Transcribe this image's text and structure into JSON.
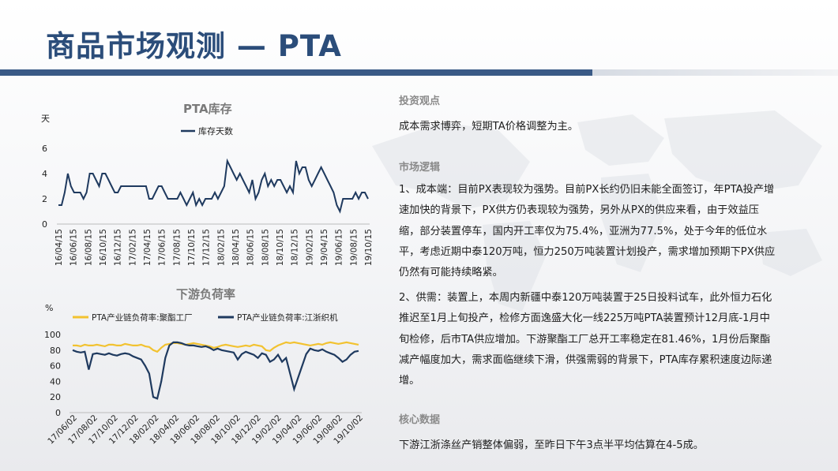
{
  "header": {
    "title": "商品市场观测 — PTA"
  },
  "chart1": {
    "title": "PTA库存",
    "unit_label": "天",
    "legend": "库存天数",
    "line_color": "#1f3a5f"
  },
  "chart2": {
    "title": "下游负荷率",
    "unit_label": "%",
    "legend_a": "PTA产业链负荷率:聚酯工厂",
    "legend_b": "PTA产业链负荷率:江浙织机",
    "color_a": "#f2c230",
    "color_b": "#1f3a5f"
  },
  "chart_data": [
    {
      "type": "line",
      "title": "PTA库存",
      "ylabel": "天",
      "ylim": [
        0,
        6
      ],
      "yticks": [
        "0",
        "2",
        "4",
        "6"
      ],
      "x_ticks": [
        "16/04/15",
        "16/06/15",
        "16/08/15",
        "16/10/15",
        "16/12/15",
        "17/02/15",
        "17/04/15",
        "17/06/15",
        "17/08/15",
        "17/10/15",
        "17/12/15",
        "18/02/15",
        "18/04/15",
        "18/06/15",
        "18/08/15",
        "18/10/15",
        "18/12/15",
        "19/02/15",
        "19/04/15",
        "19/06/15",
        "19/08/15",
        "19/10/15"
      ],
      "x_range": [
        "16/04/15",
        "19/10/15"
      ],
      "series": [
        {
          "name": "库存天数",
          "values": [
            1.5,
            1.5,
            2.5,
            4,
            3,
            2.5,
            2.5,
            2.5,
            2,
            2.5,
            4,
            4,
            3.5,
            3,
            4,
            4,
            3.5,
            3,
            2.5,
            2.5,
            3,
            3,
            3,
            3,
            3,
            3,
            3,
            3,
            3,
            2,
            2,
            2.5,
            3,
            3,
            2.5,
            2,
            2,
            2,
            2,
            2.5,
            2,
            1.5,
            2,
            2.5,
            1.5,
            2,
            1.5,
            2,
            2,
            2,
            2.5,
            2,
            2.5,
            3,
            5,
            4.5,
            4,
            3.5,
            4,
            3.5,
            3,
            2.5,
            3.5,
            2,
            2.5,
            3.5,
            4,
            3,
            3.5,
            3,
            3.5,
            3.5,
            3,
            2.5,
            3,
            2.5,
            5,
            4,
            4.5,
            4.5,
            3.5,
            3,
            3.5,
            4,
            4.5,
            4,
            3.5,
            3,
            2.5,
            1.5,
            1,
            2,
            2,
            2,
            2,
            2.5,
            2,
            2.5,
            2.5,
            2
          ]
        }
      ]
    },
    {
      "type": "line",
      "title": "下游负荷率",
      "ylabel": "%",
      "ylim": [
        0,
        100
      ],
      "yticks": [
        "0",
        "20",
        "40",
        "60",
        "80",
        "100"
      ],
      "x_ticks": [
        "17/06/02",
        "17/08/02",
        "17/10/02",
        "17/12/02",
        "18/02/02",
        "18/04/02",
        "18/06/02",
        "18/08/02",
        "18/10/02",
        "18/12/02",
        "19/02/02",
        "19/04/02",
        "19/06/02",
        "19/08/02",
        "19/10/02"
      ],
      "x_range": [
        "17/06/02",
        "19/10/02"
      ],
      "series": [
        {
          "name": "PTA产业链负荷率:聚酯工厂",
          "values": [
            86,
            86,
            85,
            87,
            86,
            86,
            87,
            86,
            85,
            87,
            87,
            86,
            86,
            88,
            87,
            86,
            86,
            87,
            85,
            84,
            80,
            78,
            83,
            87,
            88,
            89,
            89,
            88,
            87,
            88,
            89,
            88,
            87,
            86,
            85,
            83,
            84,
            86,
            87,
            86,
            85,
            84,
            85,
            86,
            85,
            87,
            86,
            85,
            80,
            79,
            83,
            86,
            88,
            90,
            89,
            90,
            89,
            88,
            87,
            86,
            87,
            88,
            87,
            89,
            90,
            89,
            88,
            89,
            90,
            89,
            88,
            87
          ]
        },
        {
          "name": "PTA产业链负荷率:江浙织机",
          "values": [
            80,
            78,
            77,
            78,
            55,
            75,
            76,
            75,
            74,
            76,
            74,
            73,
            75,
            76,
            75,
            72,
            70,
            68,
            60,
            50,
            20,
            18,
            40,
            70,
            86,
            90,
            90,
            89,
            87,
            86,
            86,
            85,
            84,
            85,
            83,
            80,
            82,
            80,
            79,
            78,
            77,
            68,
            75,
            78,
            76,
            74,
            70,
            76,
            74,
            65,
            68,
            74,
            65,
            70,
            50,
            30,
            45,
            60,
            75,
            82,
            80,
            79,
            81,
            78,
            76,
            74,
            70,
            65,
            68,
            74,
            78,
            79
          ]
        }
      ]
    }
  ],
  "right_panel": {
    "section1_heading": "投资观点",
    "section1_text": "成本需求博弈，短期TA价格调整为主。",
    "section2_heading": "市场逻辑",
    "section2_p1": "1、成本端：目前PX表现较为强势。目前PX长约仍旧未能全面签订，年PTA投产增速加快的背景下，PX供方仍表现较为强势，另外从PX的供应来看，由于效益压缩，部分装置停车，国内开工率仅为75.4%，亚洲为77.5%，处于今年的低位水平，考虑近期中泰120万吨，恒力250万吨装置计划投产，需求增加预期下PX供应仍然有可能持续略紧。",
    "section2_p2": "2、供需：装置上，本周内新疆中泰120万吨装置于25日投料试车，此外恒力石化推迟至1月上旬投产，检修方面逸盛大化一线225万吨PTA装置预计12月底-1月中旬检修，后市TA供应增加。下游聚酯工厂总开工率稳定在81.46%，1月份后聚酯减产幅度加大，需求面临继续下滑，供强需弱的背景下，PTA库存累积速度边际递增。",
    "section3_heading": "核心数据",
    "section3_text": "下游江浙涤丝产销整体偏弱，至昨日下午3点半平均估算在4-5成。"
  }
}
